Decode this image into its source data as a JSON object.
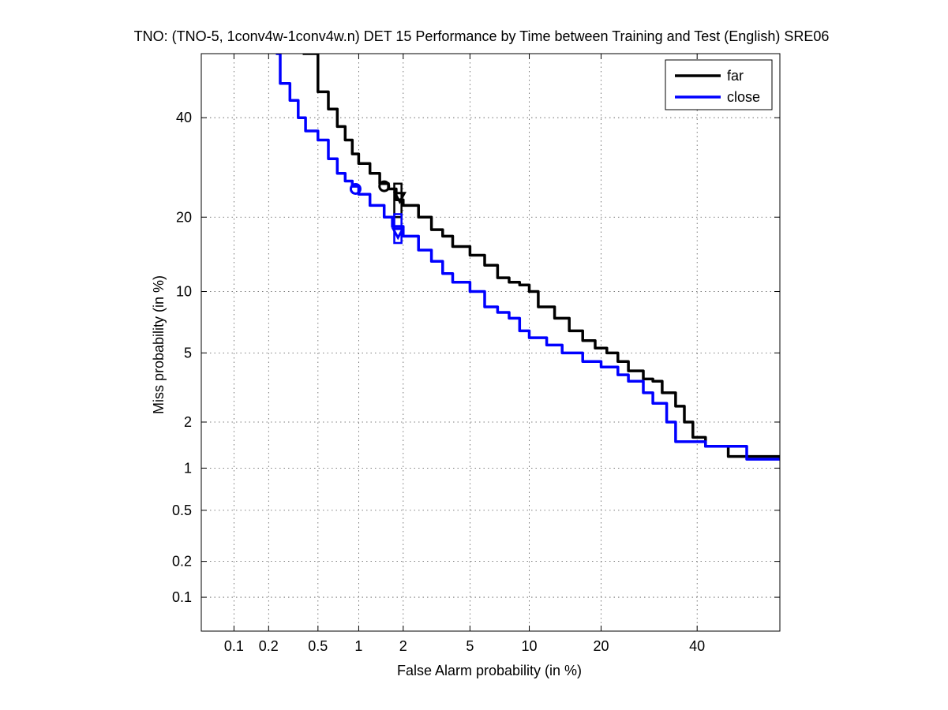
{
  "chart_data": {
    "type": "line",
    "title": "TNO: (TNO-5, 1conv4w-1conv4w.n) DET 15 Performance by Time between Training and Test (English) SRE06",
    "xlabel": "False Alarm probability (in %)",
    "ylabel": "Miss probability (in %)",
    "x_scale": "normal-deviate (probit)",
    "y_scale": "normal-deviate (probit)",
    "xlim": [
      0.05,
      60
    ],
    "ylim": [
      0.05,
      55
    ],
    "x_ticks": [
      "0.1",
      "0.2",
      "0.5",
      "1",
      "2",
      "5",
      "10",
      "20",
      "40"
    ],
    "y_ticks": [
      "0.1",
      "0.2",
      "0.5",
      "1",
      "2",
      "5",
      "10",
      "20",
      "40"
    ],
    "grid": true,
    "legend_position": "top-right",
    "series": [
      {
        "name": "far",
        "color": "#000000",
        "points": [
          [
            0.38,
            55
          ],
          [
            0.5,
            46
          ],
          [
            0.6,
            42
          ],
          [
            0.7,
            38
          ],
          [
            0.8,
            35
          ],
          [
            0.9,
            32
          ],
          [
            1.0,
            30
          ],
          [
            1.2,
            28
          ],
          [
            1.4,
            26
          ],
          [
            1.6,
            25
          ],
          [
            1.8,
            23
          ],
          [
            2.0,
            22
          ],
          [
            2.5,
            20
          ],
          [
            3.0,
            18
          ],
          [
            3.5,
            17
          ],
          [
            4.0,
            15.5
          ],
          [
            5.0,
            14.3
          ],
          [
            6.0,
            13
          ],
          [
            7.0,
            11.5
          ],
          [
            8.0,
            11
          ],
          [
            9.0,
            10.7
          ],
          [
            10.0,
            10
          ],
          [
            11.0,
            8.5
          ],
          [
            13.0,
            7.5
          ],
          [
            15.0,
            6.5
          ],
          [
            17.0,
            5.8
          ],
          [
            19.0,
            5.3
          ],
          [
            21.0,
            5.0
          ],
          [
            23.0,
            4.5
          ],
          [
            25.0,
            4.0
          ],
          [
            28.0,
            3.6
          ],
          [
            30.0,
            3.5
          ],
          [
            32.0,
            3.0
          ],
          [
            35.0,
            2.5
          ],
          [
            37.0,
            2.0
          ],
          [
            39.0,
            1.6
          ],
          [
            42.0,
            1.4
          ],
          [
            47.0,
            1.4
          ],
          [
            47.5,
            1.2
          ],
          [
            52.0,
            1.2
          ],
          [
            60.0,
            1.15
          ]
        ],
        "min_dcf_point": {
          "x": 1.5,
          "y": 25.5
        },
        "act_dcf_point": {
          "x": 1.9,
          "y": 23.5
        },
        "conf_box": {
          "x": [
            1.75,
            1.95
          ],
          "y": [
            20,
            26
          ]
        }
      },
      {
        "name": "close",
        "color": "#0000ff",
        "points": [
          [
            0.23,
            55
          ],
          [
            0.25,
            48
          ],
          [
            0.3,
            44
          ],
          [
            0.35,
            40
          ],
          [
            0.4,
            37
          ],
          [
            0.5,
            35
          ],
          [
            0.6,
            31
          ],
          [
            0.7,
            28
          ],
          [
            0.8,
            26.5
          ],
          [
            0.9,
            25.5
          ],
          [
            1.0,
            24
          ],
          [
            1.2,
            22
          ],
          [
            1.5,
            20
          ],
          [
            1.7,
            18.5
          ],
          [
            2.0,
            17
          ],
          [
            2.5,
            15
          ],
          [
            3.0,
            13.5
          ],
          [
            3.5,
            12
          ],
          [
            4.0,
            11
          ],
          [
            5.0,
            10
          ],
          [
            6.0,
            8.5
          ],
          [
            7.0,
            8.0
          ],
          [
            8.0,
            7.5
          ],
          [
            9.0,
            6.5
          ],
          [
            10.0,
            6.0
          ],
          [
            12.0,
            5.5
          ],
          [
            14.0,
            5.0
          ],
          [
            17.0,
            4.5
          ],
          [
            20.0,
            4.2
          ],
          [
            23.0,
            3.8
          ],
          [
            25.0,
            3.5
          ],
          [
            28.0,
            3.0
          ],
          [
            30.0,
            2.6
          ],
          [
            33.0,
            2.0
          ],
          [
            35.0,
            1.5
          ],
          [
            40.0,
            1.5
          ],
          [
            42.0,
            1.4
          ],
          [
            50.0,
            1.4
          ],
          [
            52.0,
            1.15
          ],
          [
            60.0,
            1.15
          ]
        ],
        "min_dcf_point": {
          "x": 0.95,
          "y": 25.0
        },
        "act_dcf_point": {
          "x": 1.85,
          "y": 17.5
        },
        "conf_box": {
          "x": [
            1.75,
            1.95
          ],
          "y": [
            16,
            20.5
          ]
        }
      }
    ]
  }
}
